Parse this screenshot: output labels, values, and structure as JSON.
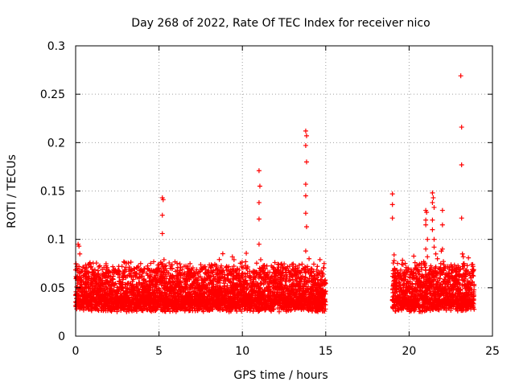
{
  "chart_data": {
    "type": "scatter",
    "title": "Day 268 of 2022, Rate Of TEC Index for receiver nico",
    "xlabel": "GPS time / hours",
    "ylabel": "ROTI / TECUs",
    "xlim": [
      0,
      25
    ],
    "ylim": [
      0,
      0.3
    ],
    "xticks": [
      0,
      5,
      10,
      15,
      20,
      25
    ],
    "xtick_labels": [
      "0",
      "5",
      "10",
      "15",
      "20",
      "25"
    ],
    "yticks": [
      0,
      0.05,
      0.1,
      0.15,
      0.2,
      0.25,
      0.3
    ],
    "ytick_labels": [
      "0",
      "0.05",
      "0.1",
      "0.15",
      "0.2",
      "0.25",
      "0.3"
    ],
    "grid": true,
    "marker": "+",
    "marker_color": "#ff0000",
    "series": [
      {
        "name": "ROTI",
        "segments": [
          {
            "start": 0.0,
            "end": 15.0,
            "baseline_min": 0.01,
            "baseline_max": 0.055
          },
          {
            "start": 19.0,
            "end": 23.9,
            "baseline_min": 0.01,
            "baseline_max": 0.055
          }
        ],
        "highlights": [
          {
            "x": 0.15,
            "y": 0.095
          },
          {
            "x": 0.2,
            "y": 0.093
          },
          {
            "x": 0.25,
            "y": 0.085
          },
          {
            "x": 0.2,
            "y": 0.072
          },
          {
            "x": 0.3,
            "y": 0.066
          },
          {
            "x": 0.1,
            "y": 0.06
          },
          {
            "x": 3.9,
            "y": 0.075
          },
          {
            "x": 4.3,
            "y": 0.07
          },
          {
            "x": 4.0,
            "y": 0.062
          },
          {
            "x": 5.2,
            "y": 0.143
          },
          {
            "x": 5.25,
            "y": 0.141
          },
          {
            "x": 5.2,
            "y": 0.125
          },
          {
            "x": 5.2,
            "y": 0.106
          },
          {
            "x": 5.3,
            "y": 0.079
          },
          {
            "x": 5.35,
            "y": 0.072
          },
          {
            "x": 5.25,
            "y": 0.066
          },
          {
            "x": 9.4,
            "y": 0.082
          },
          {
            "x": 9.5,
            "y": 0.079
          },
          {
            "x": 8.6,
            "y": 0.061
          },
          {
            "x": 8.9,
            "y": 0.06
          },
          {
            "x": 10.5,
            "y": 0.06
          },
          {
            "x": 11.0,
            "y": 0.171
          },
          {
            "x": 11.05,
            "y": 0.155
          },
          {
            "x": 11.0,
            "y": 0.138
          },
          {
            "x": 11.0,
            "y": 0.121
          },
          {
            "x": 11.0,
            "y": 0.095
          },
          {
            "x": 11.1,
            "y": 0.079
          },
          {
            "x": 11.2,
            "y": 0.068
          },
          {
            "x": 11.3,
            "y": 0.066
          },
          {
            "x": 13.5,
            "y": 0.066
          },
          {
            "x": 13.8,
            "y": 0.212
          },
          {
            "x": 13.85,
            "y": 0.207
          },
          {
            "x": 13.8,
            "y": 0.197
          },
          {
            "x": 13.85,
            "y": 0.18
          },
          {
            "x": 13.8,
            "y": 0.157
          },
          {
            "x": 13.8,
            "y": 0.145
          },
          {
            "x": 13.8,
            "y": 0.127
          },
          {
            "x": 13.85,
            "y": 0.113
          },
          {
            "x": 13.8,
            "y": 0.088
          },
          {
            "x": 14.0,
            "y": 0.08
          },
          {
            "x": 13.9,
            "y": 0.072
          },
          {
            "x": 14.0,
            "y": 0.068
          },
          {
            "x": 19.0,
            "y": 0.147
          },
          {
            "x": 19.0,
            "y": 0.136
          },
          {
            "x": 19.0,
            "y": 0.122
          },
          {
            "x": 19.1,
            "y": 0.084
          },
          {
            "x": 19.1,
            "y": 0.078
          },
          {
            "x": 20.4,
            "y": 0.065
          },
          {
            "x": 20.5,
            "y": 0.06
          },
          {
            "x": 21.0,
            "y": 0.13
          },
          {
            "x": 21.05,
            "y": 0.128
          },
          {
            "x": 21.0,
            "y": 0.12
          },
          {
            "x": 21.0,
            "y": 0.115
          },
          {
            "x": 21.1,
            "y": 0.1
          },
          {
            "x": 21.0,
            "y": 0.09
          },
          {
            "x": 21.1,
            "y": 0.082
          },
          {
            "x": 21.4,
            "y": 0.148
          },
          {
            "x": 21.45,
            "y": 0.143
          },
          {
            "x": 21.4,
            "y": 0.138
          },
          {
            "x": 21.5,
            "y": 0.133
          },
          {
            "x": 21.4,
            "y": 0.12
          },
          {
            "x": 21.4,
            "y": 0.11
          },
          {
            "x": 21.5,
            "y": 0.1
          },
          {
            "x": 21.5,
            "y": 0.092
          },
          {
            "x": 21.6,
            "y": 0.085
          },
          {
            "x": 21.7,
            "y": 0.08
          },
          {
            "x": 21.8,
            "y": 0.07
          },
          {
            "x": 22.0,
            "y": 0.13
          },
          {
            "x": 22.0,
            "y": 0.115
          },
          {
            "x": 22.0,
            "y": 0.09
          },
          {
            "x": 21.9,
            "y": 0.075
          },
          {
            "x": 23.1,
            "y": 0.269
          },
          {
            "x": 23.15,
            "y": 0.216
          },
          {
            "x": 23.15,
            "y": 0.177
          },
          {
            "x": 23.15,
            "y": 0.122
          },
          {
            "x": 23.2,
            "y": 0.085
          },
          {
            "x": 23.25,
            "y": 0.082
          },
          {
            "x": 23.3,
            "y": 0.075
          },
          {
            "x": 23.2,
            "y": 0.072
          },
          {
            "x": 22.8,
            "y": 0.07
          }
        ]
      }
    ]
  }
}
